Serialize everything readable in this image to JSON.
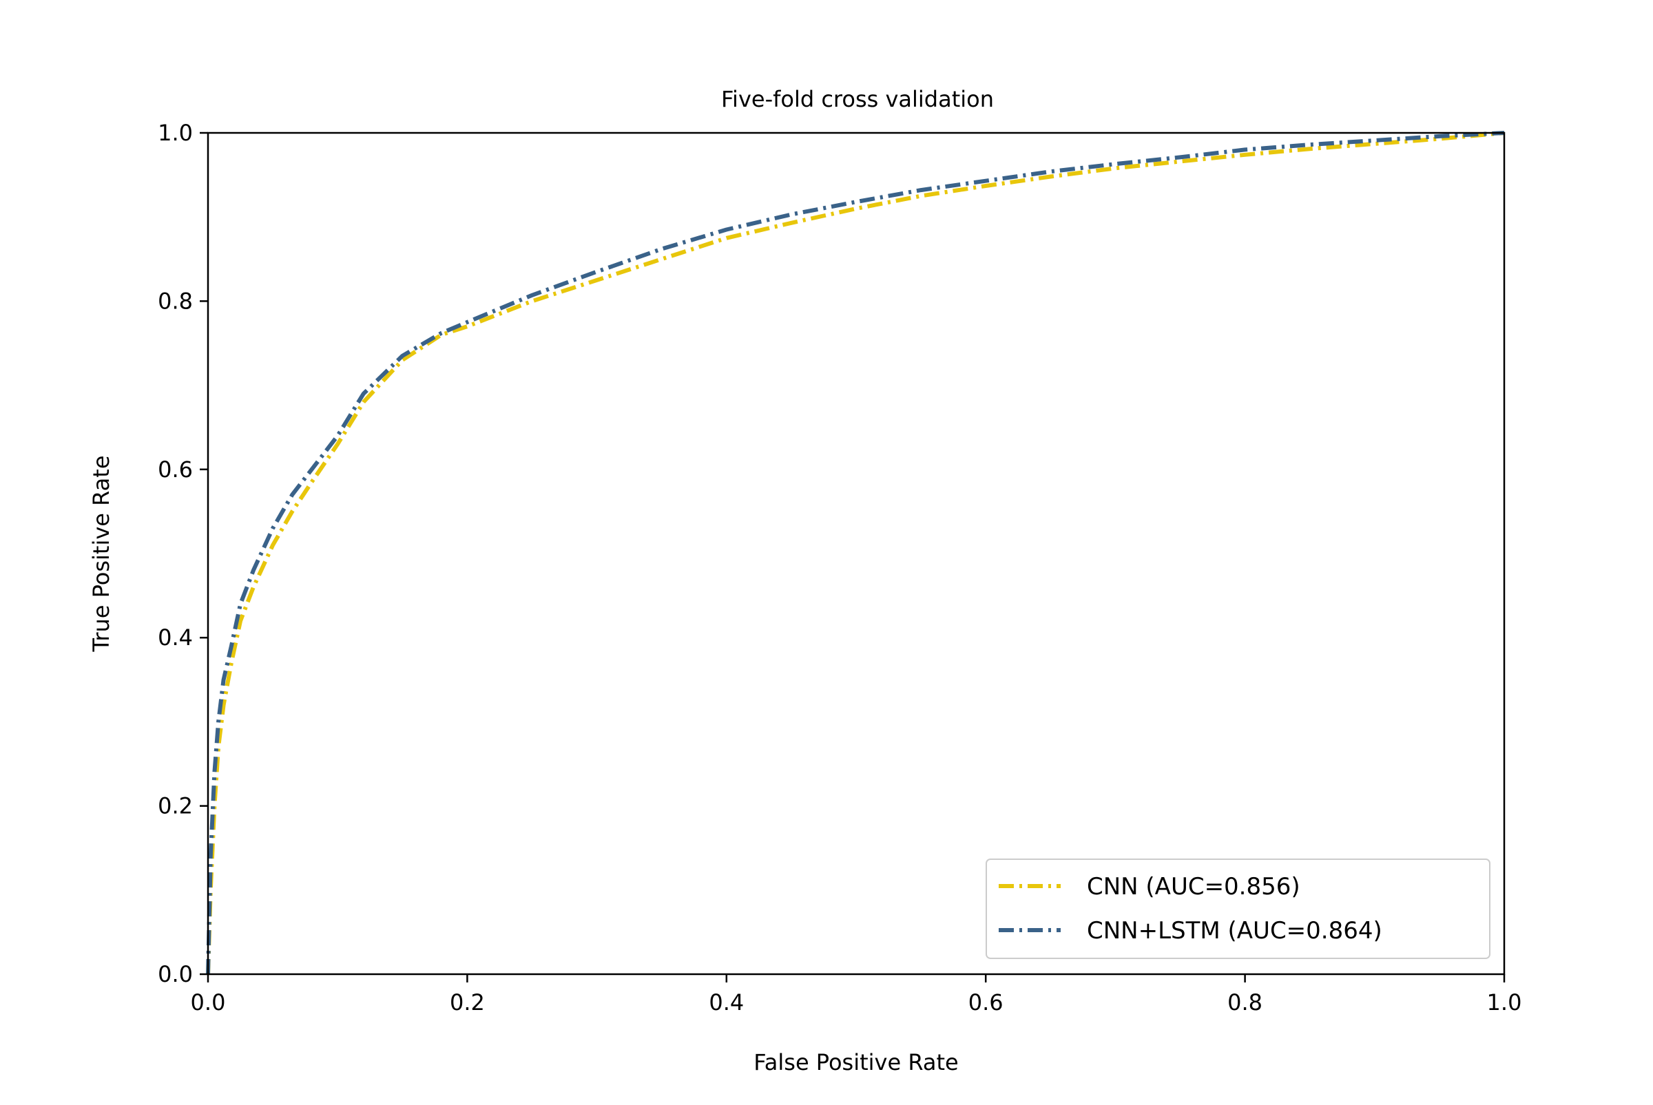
{
  "chart_data": {
    "type": "line",
    "title": "Five-fold cross validation",
    "xlabel": "False Positive Rate",
    "ylabel": "True Positive Rate",
    "xlim": [
      0,
      1
    ],
    "ylim": [
      0,
      1
    ],
    "xticks": [
      0.0,
      0.2,
      0.4,
      0.6,
      0.8,
      1.0
    ],
    "xtick_labels": [
      "0.0",
      "0.2",
      "0.4",
      "0.6",
      "0.8",
      "1.0"
    ],
    "yticks": [
      0.0,
      0.2,
      0.4,
      0.6,
      0.8,
      1.0
    ],
    "ytick_labels": [
      "0.0",
      "0.2",
      "0.4",
      "0.6",
      "0.8",
      "1.0"
    ],
    "grid": false,
    "legend_position": "bottom-right",
    "series": [
      {
        "name": "CNN (AUC=0.856)",
        "color": "#e8c60b",
        "linestyle": "dash-dot",
        "x": [
          0.0,
          0.002,
          0.005,
          0.008,
          0.012,
          0.018,
          0.025,
          0.035,
          0.05,
          0.065,
          0.08,
          0.1,
          0.12,
          0.15,
          0.18,
          0.2,
          0.25,
          0.3,
          0.35,
          0.4,
          0.45,
          0.5,
          0.55,
          0.6,
          0.65,
          0.7,
          0.75,
          0.8,
          0.85,
          0.9,
          0.95,
          1.0
        ],
        "y": [
          0.0,
          0.1,
          0.2,
          0.27,
          0.32,
          0.37,
          0.42,
          0.46,
          0.51,
          0.55,
          0.585,
          0.63,
          0.68,
          0.73,
          0.76,
          0.77,
          0.8,
          0.825,
          0.85,
          0.875,
          0.893,
          0.91,
          0.925,
          0.937,
          0.948,
          0.958,
          0.966,
          0.974,
          0.981,
          0.987,
          0.993,
          1.0
        ]
      },
      {
        "name": "CNN+LSTM (AUC=0.864)",
        "color": "#3a6289",
        "linestyle": "dash-dot",
        "x": [
          0.0,
          0.002,
          0.005,
          0.008,
          0.012,
          0.018,
          0.025,
          0.035,
          0.05,
          0.065,
          0.08,
          0.1,
          0.12,
          0.15,
          0.18,
          0.2,
          0.25,
          0.3,
          0.35,
          0.4,
          0.45,
          0.5,
          0.55,
          0.6,
          0.65,
          0.7,
          0.75,
          0.8,
          0.85,
          0.9,
          0.95,
          1.0
        ],
        "y": [
          0.0,
          0.14,
          0.24,
          0.3,
          0.35,
          0.39,
          0.44,
          0.48,
          0.53,
          0.57,
          0.6,
          0.64,
          0.69,
          0.735,
          0.762,
          0.775,
          0.807,
          0.835,
          0.862,
          0.885,
          0.903,
          0.918,
          0.932,
          0.943,
          0.954,
          0.963,
          0.971,
          0.98,
          0.986,
          0.991,
          0.996,
          1.0
        ]
      }
    ]
  }
}
